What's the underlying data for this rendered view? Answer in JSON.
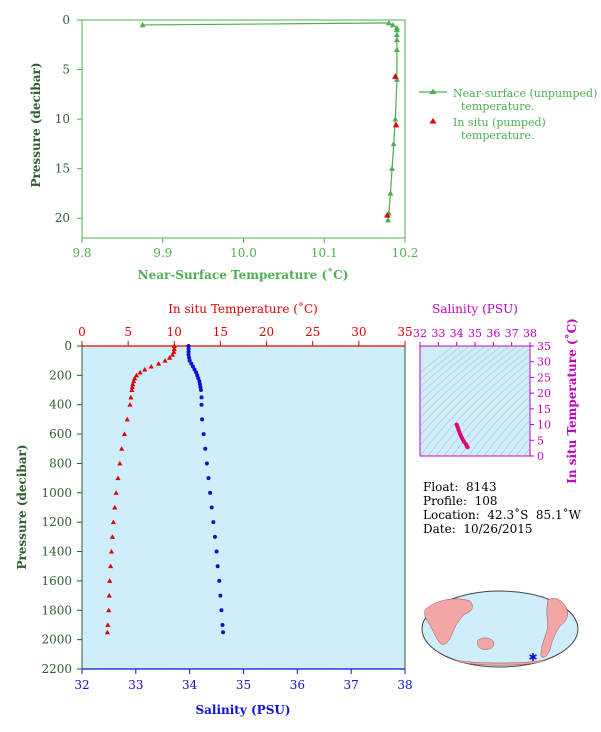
{
  "chart_data": [
    {
      "type": "line",
      "xlabel": "Near-Surface Temperature (˚C)",
      "ylabel": "Pressure (decibar)",
      "xlim": [
        9.8,
        10.2
      ],
      "ylim": [
        22,
        0
      ],
      "x_ticks": [
        "9.8",
        "9.9",
        "10.0",
        "10.1",
        "10.2"
      ],
      "y_ticks": [
        "0",
        "5",
        "10",
        "15",
        "20"
      ],
      "colors": {
        "axis": "#4caf50",
        "near_surface": "#4caf50",
        "in_situ": "#e00000"
      },
      "series": [
        {
          "name": "Near-surface (unpumped) temperature.",
          "marker": "triangle",
          "x": [
            9.875,
            10.18,
            10.185,
            10.19,
            10.19,
            10.19,
            10.19,
            10.19,
            10.19,
            10.188,
            10.186,
            10.184,
            10.182,
            10.18,
            10.179
          ],
          "y": [
            0.5,
            0.3,
            0.5,
            0.8,
            1.0,
            1.5,
            2.0,
            3.0,
            6.0,
            10.0,
            12.5,
            15.0,
            17.5,
            19.5,
            20.2
          ]
        },
        {
          "name": "In situ (pumped) temperature.",
          "marker": "triangle",
          "x": [
            10.188,
            10.189,
            10.178
          ],
          "y": [
            5.7,
            10.6,
            19.7
          ]
        }
      ]
    },
    {
      "type": "scatter",
      "ylabel": "Pressure (decibar)",
      "top_xlabel": "In situ Temperature (˚C)",
      "bottom_xlabel": "Salinity (PSU)",
      "temp_lim": [
        0,
        35
      ],
      "sal_lim": [
        32,
        38
      ],
      "ylim": [
        2200,
        0
      ],
      "temp_ticks": [
        "0",
        "5",
        "10",
        "15",
        "20",
        "25",
        "30",
        "35"
      ],
      "sal_ticks": [
        "32",
        "33",
        "34",
        "35",
        "36",
        "37",
        "38"
      ],
      "p_ticks": [
        "0",
        "200",
        "400",
        "600",
        "800",
        "1000",
        "1200",
        "1400",
        "1600",
        "1800",
        "2000",
        "2200"
      ],
      "colors": {
        "temperature": "#e00000",
        "salinity": "#1010d0",
        "background": "#cdeefa"
      },
      "temperature": {
        "p": [
          0,
          20,
          40,
          60,
          80,
          100,
          120,
          140,
          160,
          180,
          200,
          220,
          240,
          260,
          280,
          300,
          350,
          400,
          500,
          600,
          700,
          800,
          900,
          1000,
          1100,
          1200,
          1300,
          1400,
          1500,
          1600,
          1700,
          1800,
          1900,
          1950
        ],
        "t": [
          10.0,
          10.0,
          9.95,
          9.8,
          9.5,
          9.0,
          8.3,
          7.5,
          6.8,
          6.3,
          5.9,
          5.7,
          5.6,
          5.5,
          5.45,
          5.4,
          5.3,
          5.2,
          4.9,
          4.6,
          4.3,
          4.1,
          3.9,
          3.7,
          3.55,
          3.4,
          3.3,
          3.2,
          3.1,
          3.0,
          2.95,
          2.9,
          2.8,
          2.75
        ]
      },
      "salinity": {
        "p": [
          0,
          20,
          40,
          60,
          80,
          100,
          120,
          140,
          160,
          180,
          200,
          220,
          240,
          260,
          280,
          300,
          350,
          400,
          500,
          600,
          700,
          800,
          900,
          1000,
          1100,
          1200,
          1300,
          1400,
          1500,
          1600,
          1700,
          1800,
          1900,
          1950
        ],
        "s": [
          33.98,
          33.98,
          33.98,
          33.98,
          33.99,
          34.0,
          34.03,
          34.06,
          34.09,
          34.12,
          34.14,
          34.16,
          34.18,
          34.19,
          34.2,
          34.21,
          34.22,
          34.22,
          34.23,
          34.26,
          34.29,
          34.32,
          34.35,
          34.38,
          34.41,
          34.44,
          34.47,
          34.5,
          34.52,
          34.55,
          34.57,
          34.59,
          34.61,
          34.62
        ]
      }
    },
    {
      "type": "scatter",
      "title": "Salinity (PSU)",
      "ylabel": "In situ Temperature (˚C)",
      "xlim": [
        32,
        38
      ],
      "ylim": [
        0,
        35
      ],
      "x_ticks": [
        "32",
        "33",
        "34",
        "35",
        "36",
        "37",
        "38"
      ],
      "y_ticks": [
        "0",
        "5",
        "10",
        "15",
        "20",
        "25",
        "30",
        "35"
      ],
      "colors": {
        "axis": "#c000c0",
        "points": "#e0007a",
        "background": "#cdeefa"
      },
      "x": [
        34.0,
        34.05,
        34.1,
        34.15,
        34.2,
        34.25,
        34.3,
        34.35,
        34.4,
        34.5,
        34.55,
        34.6
      ],
      "y": [
        10.0,
        9.2,
        8.4,
        7.6,
        6.8,
        6.2,
        5.6,
        5.0,
        4.5,
        3.8,
        3.2,
        2.8
      ]
    }
  ],
  "info": {
    "float": "Float:  8143",
    "profile": "Profile:  108",
    "location": "Location:  42.3˚S  85.1˚W",
    "date": "Date:  10/26/2015"
  },
  "map": {
    "marker": "float-location-star",
    "colors": {
      "ocean": "#cdeefa",
      "land": "#f2a6a6",
      "marker": "#1010d0"
    }
  }
}
